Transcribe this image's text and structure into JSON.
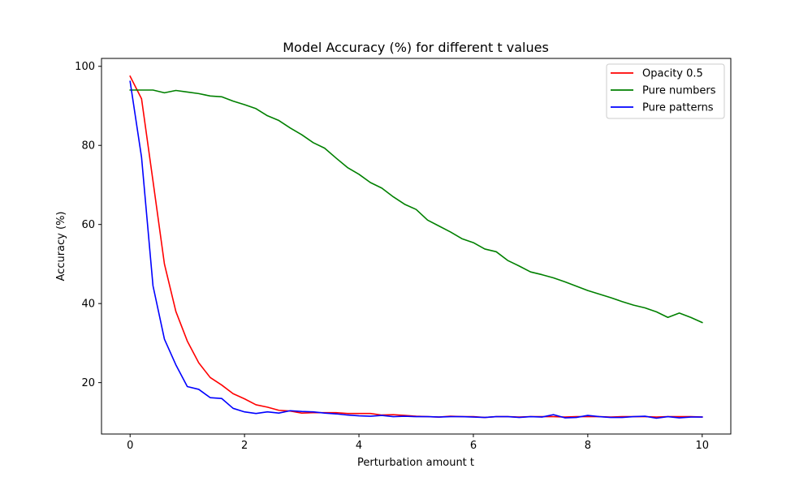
{
  "chart_data": {
    "type": "line",
    "title": "Model Accuracy (%) for different t values",
    "xlabel": "Perturbation amount t",
    "ylabel": "Accuracy (%)",
    "xlim": [
      -0.5,
      10.5
    ],
    "ylim": [
      7.0,
      102.0
    ],
    "xticks": [
      0,
      2,
      4,
      6,
      8,
      10
    ],
    "yticks": [
      20,
      40,
      60,
      80,
      100
    ],
    "grid": false,
    "legend_position": "top-right",
    "x": [
      0.0,
      0.2,
      0.4,
      0.6,
      0.8,
      1.0,
      1.2,
      1.4,
      1.6,
      1.8,
      2.0,
      2.2,
      2.4,
      2.6,
      2.8,
      3.0,
      3.2,
      3.4,
      3.6,
      3.8,
      4.0,
      4.2,
      4.4,
      4.6,
      4.8,
      5.0,
      5.2,
      5.4,
      5.6,
      5.8,
      6.0,
      6.2,
      6.4,
      6.6,
      6.8,
      7.0,
      7.2,
      7.4,
      7.6,
      7.8,
      8.0,
      8.2,
      8.4,
      8.6,
      8.8,
      9.0,
      9.2,
      9.4,
      9.6,
      9.8,
      10.0
    ],
    "series": [
      {
        "name": "Opacity 0.5",
        "color": "#ff0000",
        "values": [
          97.5,
          91.8,
          71.0,
          50.0,
          38.0,
          30.5,
          25.0,
          21.3,
          19.4,
          17.2,
          15.9,
          14.4,
          13.8,
          13.0,
          12.8,
          12.3,
          12.4,
          12.4,
          12.4,
          12.2,
          12.2,
          12.2,
          11.8,
          11.9,
          11.7,
          11.5,
          11.4,
          11.3,
          11.5,
          11.4,
          11.4,
          11.2,
          11.4,
          11.4,
          11.3,
          11.4,
          11.4,
          11.4,
          11.3,
          11.4,
          11.4,
          11.4,
          11.3,
          11.4,
          11.4,
          11.4,
          11.3,
          11.4,
          11.4,
          11.4,
          11.3
        ]
      },
      {
        "name": "Pure numbers",
        "color": "#008000",
        "values": [
          94.0,
          94.0,
          94.0,
          93.3,
          93.9,
          93.5,
          93.1,
          92.5,
          92.3,
          91.2,
          90.3,
          89.3,
          87.5,
          86.3,
          84.4,
          82.7,
          80.7,
          79.3,
          76.8,
          74.4,
          72.7,
          70.6,
          69.2,
          67.0,
          65.1,
          63.8,
          61.1,
          59.6,
          58.1,
          56.4,
          55.4,
          53.8,
          53.1,
          50.9,
          49.5,
          48.0,
          47.3,
          46.5,
          45.5,
          44.4,
          43.3,
          42.4,
          41.5,
          40.5,
          39.6,
          38.9,
          37.9,
          36.5,
          37.6,
          36.5,
          35.2
        ]
      },
      {
        "name": "Pure patterns",
        "color": "#0000ff",
        "values": [
          96.2,
          77.0,
          44.5,
          31.0,
          24.5,
          19.0,
          18.3,
          16.2,
          16.0,
          13.5,
          12.6,
          12.2,
          12.6,
          12.3,
          12.9,
          12.7,
          12.6,
          12.3,
          12.1,
          11.8,
          11.6,
          11.5,
          11.7,
          11.4,
          11.5,
          11.4,
          11.4,
          11.3,
          11.4,
          11.4,
          11.3,
          11.2,
          11.4,
          11.4,
          11.2,
          11.4,
          11.3,
          11.9,
          11.1,
          11.2,
          11.7,
          11.4,
          11.2,
          11.2,
          11.4,
          11.5,
          11.0,
          11.4,
          11.1,
          11.3,
          11.3
        ]
      }
    ]
  }
}
